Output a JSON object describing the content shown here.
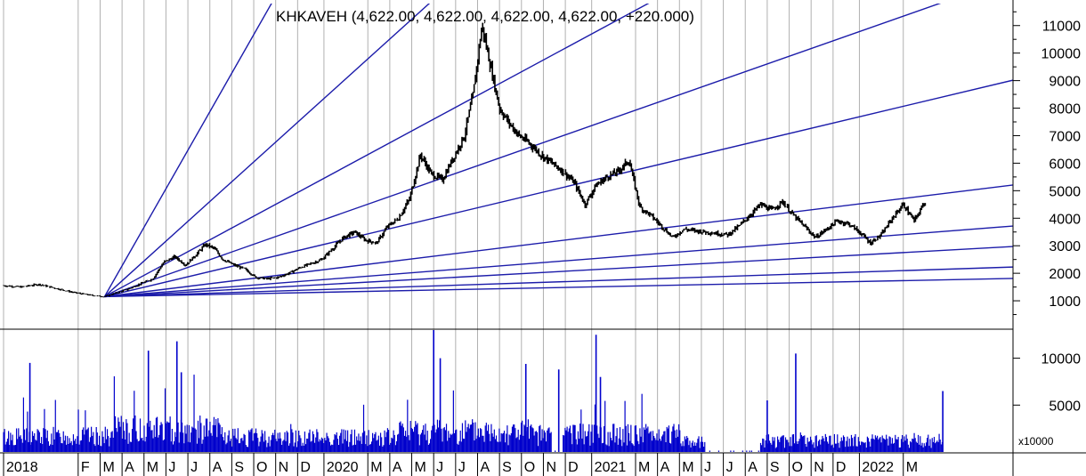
{
  "chart_data": {
    "type": "candlestick",
    "title": "KHKAVEH (4,622.00, 4,622.00, 4,622.00, 4,622.00, +220.000)",
    "price_panel": {
      "ylim": [
        0,
        11800
      ],
      "y_ticks": [
        1000,
        2000,
        3000,
        4000,
        5000,
        6000,
        7000,
        8000,
        9000,
        10000,
        11000
      ],
      "series": {
        "name": "KHKAVEH",
        "points": [
          {
            "x": 0.0,
            "y": 1550
          },
          {
            "x": 0.8,
            "y": 1500
          },
          {
            "x": 1.6,
            "y": 1600
          },
          {
            "x": 2.4,
            "y": 1450
          },
          {
            "x": 3.2,
            "y": 1300
          },
          {
            "x": 4.0,
            "y": 1200
          },
          {
            "x": 4.6,
            "y": 1150
          },
          {
            "x": 5.0,
            "y": 1250
          },
          {
            "x": 5.6,
            "y": 1400
          },
          {
            "x": 6.2,
            "y": 1600
          },
          {
            "x": 6.8,
            "y": 1800
          },
          {
            "x": 7.3,
            "y": 2400
          },
          {
            "x": 7.8,
            "y": 2600
          },
          {
            "x": 8.3,
            "y": 2300
          },
          {
            "x": 8.8,
            "y": 2700
          },
          {
            "x": 9.2,
            "y": 3050
          },
          {
            "x": 9.6,
            "y": 2900
          },
          {
            "x": 10.0,
            "y": 2500
          },
          {
            "x": 10.5,
            "y": 2300
          },
          {
            "x": 11.0,
            "y": 2150
          },
          {
            "x": 11.5,
            "y": 1850
          },
          {
            "x": 12.0,
            "y": 1800
          },
          {
            "x": 12.5,
            "y": 1850
          },
          {
            "x": 13.0,
            "y": 2000
          },
          {
            "x": 13.5,
            "y": 2200
          },
          {
            "x": 14.0,
            "y": 2350
          },
          {
            "x": 14.5,
            "y": 2500
          },
          {
            "x": 15.0,
            "y": 2900
          },
          {
            "x": 15.5,
            "y": 3300
          },
          {
            "x": 16.0,
            "y": 3500
          },
          {
            "x": 16.5,
            "y": 3200
          },
          {
            "x": 17.0,
            "y": 3100
          },
          {
            "x": 17.5,
            "y": 3700
          },
          {
            "x": 18.0,
            "y": 4000
          },
          {
            "x": 18.5,
            "y": 4700
          },
          {
            "x": 19.0,
            "y": 6300
          },
          {
            "x": 19.5,
            "y": 5600
          },
          {
            "x": 20.0,
            "y": 5400
          },
          {
            "x": 20.5,
            "y": 6200
          },
          {
            "x": 21.0,
            "y": 7000
          },
          {
            "x": 21.4,
            "y": 8500
          },
          {
            "x": 21.8,
            "y": 11000
          },
          {
            "x": 22.2,
            "y": 9500
          },
          {
            "x": 22.6,
            "y": 8000
          },
          {
            "x": 23.0,
            "y": 7500
          },
          {
            "x": 23.5,
            "y": 7000
          },
          {
            "x": 24.0,
            "y": 6700
          },
          {
            "x": 24.5,
            "y": 6300
          },
          {
            "x": 25.0,
            "y": 6000
          },
          {
            "x": 25.5,
            "y": 5700
          },
          {
            "x": 26.0,
            "y": 5300
          },
          {
            "x": 26.5,
            "y": 4500
          },
          {
            "x": 27.0,
            "y": 5200
          },
          {
            "x": 27.5,
            "y": 5500
          },
          {
            "x": 28.0,
            "y": 5700
          },
          {
            "x": 28.5,
            "y": 6100
          },
          {
            "x": 29.0,
            "y": 4400
          },
          {
            "x": 29.5,
            "y": 4100
          },
          {
            "x": 30.0,
            "y": 3700
          },
          {
            "x": 30.5,
            "y": 3300
          },
          {
            "x": 31.0,
            "y": 3600
          },
          {
            "x": 31.5,
            "y": 3550
          },
          {
            "x": 32.0,
            "y": 3500
          },
          {
            "x": 32.5,
            "y": 3450
          },
          {
            "x": 33.0,
            "y": 3400
          },
          {
            "x": 33.5,
            "y": 3700
          },
          {
            "x": 34.0,
            "y": 4100
          },
          {
            "x": 34.5,
            "y": 4500
          },
          {
            "x": 35.0,
            "y": 4300
          },
          {
            "x": 35.5,
            "y": 4600
          },
          {
            "x": 36.0,
            "y": 4100
          },
          {
            "x": 36.5,
            "y": 3700
          },
          {
            "x": 37.0,
            "y": 3300
          },
          {
            "x": 37.5,
            "y": 3600
          },
          {
            "x": 38.0,
            "y": 3900
          },
          {
            "x": 38.5,
            "y": 3800
          },
          {
            "x": 39.0,
            "y": 3500
          },
          {
            "x": 39.5,
            "y": 3100
          },
          {
            "x": 40.0,
            "y": 3400
          },
          {
            "x": 40.5,
            "y": 4000
          },
          {
            "x": 41.0,
            "y": 4500
          },
          {
            "x": 41.5,
            "y": 3900
          },
          {
            "x": 42.0,
            "y": 4622
          }
        ]
      },
      "fan_lines": {
        "origin": {
          "x": 4.6,
          "y": 1150
        },
        "slopes_per_unit": [
          1400,
          720,
          430,
          280,
          190,
          98,
          62,
          44,
          26,
          16
        ]
      }
    },
    "volume_panel": {
      "ylim": [
        0,
        13000
      ],
      "y_ticks": [
        5000,
        10000
      ],
      "unit_label": "x10000",
      "spikes": [
        {
          "x": 1.2,
          "v": 9500
        },
        {
          "x": 6.6,
          "v": 10800
        },
        {
          "x": 7.9,
          "v": 11800
        },
        {
          "x": 8.1,
          "v": 8500
        },
        {
          "x": 19.6,
          "v": 13500
        },
        {
          "x": 19.9,
          "v": 10000
        },
        {
          "x": 23.8,
          "v": 9400
        },
        {
          "x": 25.3,
          "v": 8800
        },
        {
          "x": 27.0,
          "v": 12500
        },
        {
          "x": 27.2,
          "v": 8000
        },
        {
          "x": 34.8,
          "v": 5500
        },
        {
          "x": 36.1,
          "v": 10500
        },
        {
          "x": 42.8,
          "v": 6500
        }
      ],
      "gaps": [
        [
          25.0,
          25.5
        ],
        [
          32.0,
          34.5
        ]
      ]
    },
    "x_axis": {
      "xlim": [
        0,
        46
      ],
      "ticks": [
        {
          "x": 0,
          "label": "2018"
        },
        {
          "x": 3.4,
          "label": "F"
        },
        {
          "x": 4.4,
          "label": "M"
        },
        {
          "x": 5.4,
          "label": "A"
        },
        {
          "x": 6.4,
          "label": "M"
        },
        {
          "x": 7.4,
          "label": "J"
        },
        {
          "x": 8.4,
          "label": "J"
        },
        {
          "x": 9.4,
          "label": "A"
        },
        {
          "x": 10.4,
          "label": "S"
        },
        {
          "x": 11.4,
          "label": "O"
        },
        {
          "x": 12.4,
          "label": "N"
        },
        {
          "x": 13.4,
          "label": "D"
        },
        {
          "x": 14.6,
          "label": "2020"
        },
        {
          "x": 16.6,
          "label": "M"
        },
        {
          "x": 17.6,
          "label": "A"
        },
        {
          "x": 18.6,
          "label": "M"
        },
        {
          "x": 19.6,
          "label": "J"
        },
        {
          "x": 20.6,
          "label": "J"
        },
        {
          "x": 21.6,
          "label": "A"
        },
        {
          "x": 22.6,
          "label": "S"
        },
        {
          "x": 23.6,
          "label": "O"
        },
        {
          "x": 24.6,
          "label": "N"
        },
        {
          "x": 25.6,
          "label": "D"
        },
        {
          "x": 26.8,
          "label": "2021"
        },
        {
          "x": 28.8,
          "label": "M"
        },
        {
          "x": 29.8,
          "label": "A"
        },
        {
          "x": 30.8,
          "label": "M"
        },
        {
          "x": 31.8,
          "label": "J"
        },
        {
          "x": 32.8,
          "label": "J"
        },
        {
          "x": 33.8,
          "label": "A"
        },
        {
          "x": 34.8,
          "label": "S"
        },
        {
          "x": 35.8,
          "label": "O"
        },
        {
          "x": 36.8,
          "label": "N"
        },
        {
          "x": 37.8,
          "label": "D"
        },
        {
          "x": 39.0,
          "label": "2022"
        },
        {
          "x": 41.0,
          "label": "M"
        }
      ]
    },
    "grid": {
      "vertical": true,
      "horizontal": false
    },
    "colors": {
      "price": "#000000",
      "fan": "#1c1caa",
      "volume": "#0000cc",
      "grid": "#b0b0b0"
    }
  }
}
